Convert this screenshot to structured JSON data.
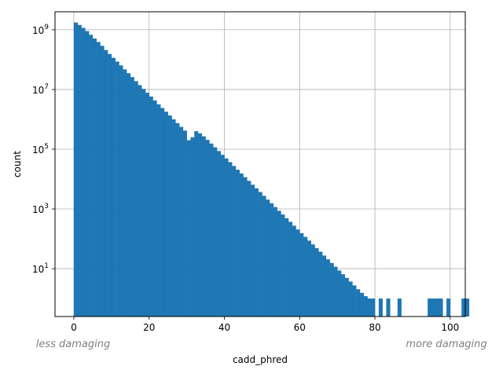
{
  "chart_data": {
    "type": "bar",
    "title": "",
    "xlabel": "cadd_phred",
    "ylabel": "count",
    "yscale": "log",
    "grid": true,
    "xlim": [
      -5,
      104
    ],
    "ylim": [
      0.25,
      4000000000
    ],
    "bar_color": "#1f77b4",
    "x_ticks": [
      {
        "value": 0,
        "label": "0"
      },
      {
        "value": 20,
        "label": "20"
      },
      {
        "value": 40,
        "label": "40"
      },
      {
        "value": 60,
        "label": "60"
      },
      {
        "value": 80,
        "label": "80"
      },
      {
        "value": 100,
        "label": "100"
      }
    ],
    "y_ticks": [
      {
        "value": 10,
        "base": "10",
        "exp": "1"
      },
      {
        "value": 1000,
        "base": "10",
        "exp": "3"
      },
      {
        "value": 100000,
        "base": "10",
        "exp": "5"
      },
      {
        "value": 10000000,
        "base": "10",
        "exp": "7"
      },
      {
        "value": 1000000000,
        "base": "10",
        "exp": "9"
      }
    ],
    "annotations": {
      "left": "less damaging",
      "right": "more damaging"
    },
    "bins": {
      "start": 0,
      "width": 1
    },
    "values": [
      1740000000,
      1450000000,
      1150000000,
      900000000,
      680000000,
      510000000,
      390000000,
      290000000,
      210000000,
      155000000,
      115000000,
      86000000,
      64000000,
      47000000,
      35000000,
      26000000,
      19000000,
      14000000,
      10500000,
      7800000,
      5800000,
      4300000,
      3200000,
      2400000,
      1800000,
      1350000,
      1000000,
      750000,
      560000,
      420000,
      200000,
      250000,
      400000,
      340000,
      270000,
      205000,
      155000,
      116000,
      87000,
      65000,
      49000,
      37000,
      27500,
      20500,
      15500,
      11600,
      8700,
      6500,
      4900,
      3700,
      2750,
      2050,
      1550,
      1160,
      870,
      650,
      490,
      370,
      275,
      205,
      155,
      116,
      87,
      65,
      49,
      37,
      27.5,
      20.5,
      15.5,
      11.6,
      8.7,
      6.5,
      4.9,
      3.7,
      2.75,
      2.05,
      1.55,
      1.2,
      1,
      1,
      0,
      1,
      0,
      1,
      0,
      0,
      1,
      0,
      0,
      0,
      0,
      0,
      0,
      0,
      1,
      1,
      1,
      1,
      0,
      1,
      0,
      0,
      0,
      1,
      1,
      0
    ]
  }
}
